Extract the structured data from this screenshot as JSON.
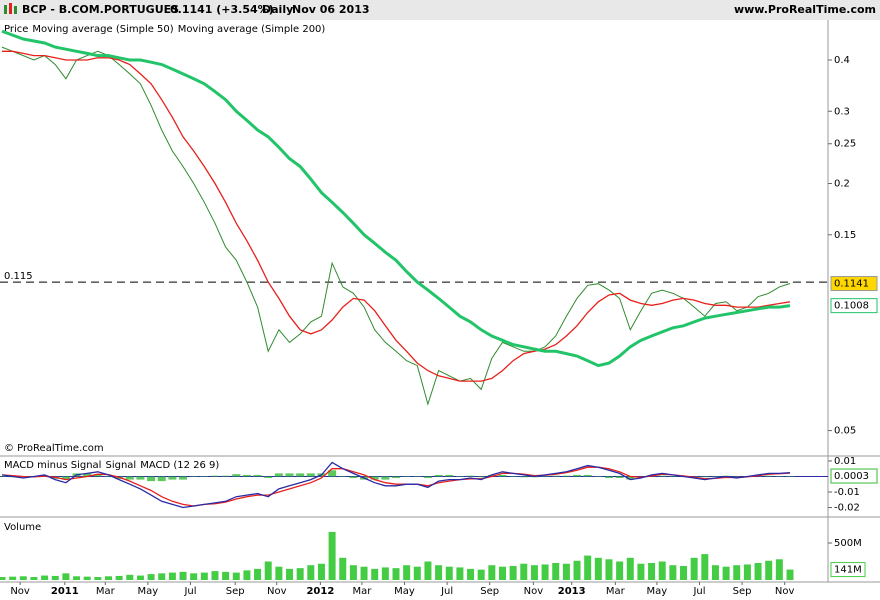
{
  "header": {
    "symbol": "BCP - B.COM.PORTUGUES",
    "quote": "0.1141 (+3.54%)",
    "period": "Daily",
    "date": "Nov 06 2013",
    "site": "www.ProRealTime.com",
    "watermark": "© ProRealTime.com"
  },
  "chart_data": [
    {
      "type": "line",
      "log_scale": true,
      "reference_line": 0.115,
      "ylim": [
        0.0436,
        0.495
      ],
      "yticks": [
        0.05,
        0.15,
        0.2,
        0.25,
        0.3,
        0.4
      ],
      "series": [
        {
          "name": "Price",
          "color": "#2e8b2e",
          "values": [
            0.43,
            0.42,
            0.41,
            0.4,
            0.41,
            0.39,
            0.36,
            0.4,
            0.41,
            0.42,
            0.41,
            0.39,
            0.37,
            0.35,
            0.31,
            0.27,
            0.24,
            0.22,
            0.2,
            0.18,
            0.16,
            0.14,
            0.13,
            0.115,
            0.1,
            0.078,
            0.088,
            0.082,
            0.086,
            0.092,
            0.095,
            0.128,
            0.112,
            0.108,
            0.1,
            0.088,
            0.082,
            0.078,
            0.074,
            0.072,
            0.058,
            0.07,
            0.068,
            0.066,
            0.067,
            0.063,
            0.075,
            0.082,
            0.08,
            0.078,
            0.078,
            0.08,
            0.085,
            0.095,
            0.105,
            0.113,
            0.114,
            0.11,
            0.105,
            0.088,
            0.098,
            0.108,
            0.11,
            0.108,
            0.105,
            0.1,
            0.095,
            0.102,
            0.103,
            0.098,
            0.1,
            0.106,
            0.108,
            0.112,
            0.1141
          ]
        },
        {
          "name": "Moving average (Simple 50)",
          "color": "#e8201c",
          "values": [
            0.42,
            0.42,
            0.415,
            0.41,
            0.41,
            0.405,
            0.4,
            0.4,
            0.4,
            0.405,
            0.405,
            0.4,
            0.39,
            0.37,
            0.35,
            0.32,
            0.29,
            0.26,
            0.24,
            0.22,
            0.2,
            0.18,
            0.16,
            0.145,
            0.13,
            0.115,
            0.105,
            0.095,
            0.088,
            0.086,
            0.088,
            0.093,
            0.1,
            0.105,
            0.104,
            0.098,
            0.09,
            0.083,
            0.078,
            0.073,
            0.07,
            0.068,
            0.067,
            0.066,
            0.066,
            0.066,
            0.067,
            0.07,
            0.074,
            0.077,
            0.078,
            0.079,
            0.081,
            0.085,
            0.09,
            0.097,
            0.103,
            0.107,
            0.108,
            0.104,
            0.102,
            0.101,
            0.102,
            0.104,
            0.105,
            0.104,
            0.102,
            0.101,
            0.101,
            0.1,
            0.1,
            0.1,
            0.101,
            0.102,
            0.103
          ]
        },
        {
          "name": "Moving average (Simple 200)",
          "color": "#22c46a",
          "values": [
            0.47,
            0.46,
            0.45,
            0.445,
            0.44,
            0.43,
            0.425,
            0.42,
            0.415,
            0.41,
            0.41,
            0.405,
            0.4,
            0.4,
            0.395,
            0.39,
            0.38,
            0.37,
            0.36,
            0.35,
            0.335,
            0.32,
            0.3,
            0.285,
            0.27,
            0.26,
            0.245,
            0.23,
            0.22,
            0.205,
            0.19,
            0.18,
            0.17,
            0.16,
            0.15,
            0.143,
            0.136,
            0.13,
            0.122,
            0.115,
            0.11,
            0.105,
            0.1,
            0.095,
            0.092,
            0.088,
            0.085,
            0.083,
            0.081,
            0.08,
            0.079,
            0.078,
            0.078,
            0.077,
            0.076,
            0.074,
            0.072,
            0.073,
            0.076,
            0.08,
            0.083,
            0.085,
            0.087,
            0.089,
            0.09,
            0.092,
            0.094,
            0.095,
            0.096,
            0.097,
            0.098,
            0.099,
            0.1,
            0.1,
            0.1008
          ]
        }
      ]
    },
    {
      "type": "line",
      "ylim": [
        -0.0248,
        0.0119
      ],
      "yticks": [
        0.01,
        -0.01,
        -0.02
      ],
      "series": [
        {
          "name": "MACD minus Signal",
          "color": "#33bb33",
          "style": "bar",
          "values": [
            0,
            -0.0005,
            -0.001,
            0.0003,
            0.0008,
            -0.0015,
            -0.002,
            0.002,
            0.002,
            0.0015,
            -0.0002,
            -0.0015,
            -0.002,
            -0.002,
            -0.003,
            -0.003,
            -0.002,
            -0.002,
            0,
            0,
            0.0005,
            0.0005,
            0.0015,
            0.001,
            0.001,
            -0.001,
            0.002,
            0.002,
            0.002,
            0.002,
            0.002,
            0.004,
            0,
            -0.001,
            -0.002,
            -0.002,
            -0.002,
            -0.001,
            0,
            0,
            -0.001,
            0.001,
            0.001,
            0,
            0.0005,
            -0.0005,
            0.001,
            0.001,
            0,
            -0.0005,
            -0.0005,
            0.0002,
            0.0005,
            0.0005,
            0.001,
            0.001,
            0,
            -0.001,
            -0.001,
            -0.002,
            -0.0005,
            0.0007,
            0.0005,
            0,
            -0.0004,
            -0.0005,
            -0.0005,
            0.0002,
            0.0005,
            -0.0003,
            0.0003,
            0.0005,
            0.0005,
            0.0002,
            0.0003
          ]
        },
        {
          "name": "Signal",
          "color": "#e8201c",
          "style": "line",
          "values": [
            0.001,
            0.0005,
            0,
            -0.0003,
            0.0002,
            -0.0005,
            -0.002,
            -0.001,
            0,
            0.0015,
            0.0012,
            -0.0005,
            -0.003,
            -0.006,
            -0.009,
            -0.013,
            -0.016,
            -0.018,
            -0.019,
            -0.018,
            -0.0175,
            -0.0165,
            -0.0145,
            -0.013,
            -0.012,
            -0.012,
            -0.01,
            -0.008,
            -0.006,
            -0.004,
            -0.001,
            0.005,
            0.005,
            0.003,
            0.001,
            -0.002,
            -0.004,
            -0.005,
            -0.005,
            -0.005,
            -0.006,
            -0.004,
            -0.003,
            -0.002,
            -0.0015,
            -0.0015,
            0,
            0.002,
            0.002,
            0.0015,
            0.0005,
            0.0008,
            0.0015,
            0.0025,
            0.004,
            0.006,
            0.006,
            0.005,
            0.003,
            0,
            -0.0005,
            0.0003,
            0.0015,
            0.001,
            0.0004,
            -0.0005,
            -0.0015,
            -0.0012,
            -0.0005,
            -0.0007,
            -0.0003,
            0.0005,
            0.0015,
            0.0018,
            0.0022
          ]
        },
        {
          "name": "MACD (12 26 9)",
          "color": "#2a2aa8",
          "style": "line",
          "values": [
            0.001,
            0,
            -0.001,
            0,
            0.001,
            -0.002,
            -0.004,
            0.001,
            0.002,
            0.003,
            0.001,
            -0.002,
            -0.005,
            -0.008,
            -0.012,
            -0.016,
            -0.018,
            -0.02,
            -0.019,
            -0.018,
            -0.017,
            -0.016,
            -0.013,
            -0.012,
            -0.011,
            -0.013,
            -0.008,
            -0.006,
            -0.004,
            -0.002,
            0.001,
            0.009,
            0.005,
            0.002,
            -0.001,
            -0.004,
            -0.006,
            -0.006,
            -0.005,
            -0.005,
            -0.007,
            -0.003,
            -0.002,
            -0.002,
            -0.001,
            -0.002,
            0.001,
            0.003,
            0.002,
            0.001,
            0,
            0.001,
            0.002,
            0.003,
            0.005,
            0.007,
            0.006,
            0.004,
            0.002,
            -0.002,
            -0.001,
            0.001,
            0.002,
            0.001,
            0,
            -0.001,
            -0.002,
            -0.001,
            0,
            -0.001,
            0,
            0.001,
            0.002,
            0.002,
            0.0025
          ]
        }
      ]
    },
    {
      "type": "bar",
      "name": "Volume",
      "color": "#44cc44",
      "ylim": [
        0,
        811
      ],
      "yticks": [
        {
          "value": 500,
          "label": "500M"
        }
      ],
      "values": [
        40,
        45,
        50,
        40,
        60,
        55,
        90,
        50,
        45,
        40,
        50,
        55,
        70,
        60,
        80,
        90,
        100,
        110,
        90,
        100,
        120,
        110,
        100,
        130,
        150,
        250,
        180,
        150,
        160,
        200,
        220,
        650,
        300,
        200,
        180,
        150,
        170,
        160,
        200,
        180,
        250,
        200,
        180,
        170,
        150,
        140,
        200,
        180,
        190,
        220,
        200,
        210,
        230,
        220,
        260,
        330,
        300,
        280,
        250,
        300,
        220,
        230,
        250,
        200,
        190,
        300,
        350,
        200,
        180,
        200,
        210,
        230,
        260,
        280,
        141
      ],
      "value_labels": [
        null,
        null,
        null,
        null,
        null,
        null,
        null,
        null,
        null,
        null,
        null,
        null,
        null,
        null,
        null,
        null,
        null,
        null,
        null,
        null,
        null,
        null,
        null,
        null,
        null,
        null,
        null,
        null,
        null,
        null,
        null,
        null,
        null,
        null,
        null,
        null,
        null,
        null,
        null,
        null,
        null,
        null,
        null,
        null,
        null,
        null,
        null,
        null,
        null,
        null,
        null,
        null,
        null,
        null,
        null,
        null,
        null,
        null,
        null,
        null,
        null,
        null,
        null,
        null,
        null,
        null,
        null,
        null,
        null,
        null,
        null,
        null,
        null,
        null,
        "141M"
      ],
      "xticks": [
        {
          "value": 1.7,
          "label": "Nov"
        },
        {
          "value": 5.9,
          "label": "2011"
        },
        {
          "value": 9.7,
          "label": "Mar"
        },
        {
          "value": 13.7,
          "label": "May"
        },
        {
          "value": 17.7,
          "label": "Jul"
        },
        {
          "value": 21.9,
          "label": "Sep"
        },
        {
          "value": 25.8,
          "label": "Nov"
        },
        {
          "value": 29.9,
          "label": "2012"
        },
        {
          "value": 33.8,
          "label": "Mar"
        },
        {
          "value": 37.8,
          "label": "May"
        },
        {
          "value": 41.8,
          "label": "Jul"
        },
        {
          "value": 45.8,
          "label": "Sep"
        },
        {
          "value": 49.9,
          "label": "Nov"
        },
        {
          "value": 53.5,
          "label": "2013"
        },
        {
          "value": 57.6,
          "label": "Mar"
        },
        {
          "value": 61.5,
          "label": "May"
        },
        {
          "value": 65.5,
          "label": "Jul"
        },
        {
          "value": 69.5,
          "label": "Sep"
        },
        {
          "value": 73.5,
          "label": "Nov"
        }
      ]
    }
  ]
}
